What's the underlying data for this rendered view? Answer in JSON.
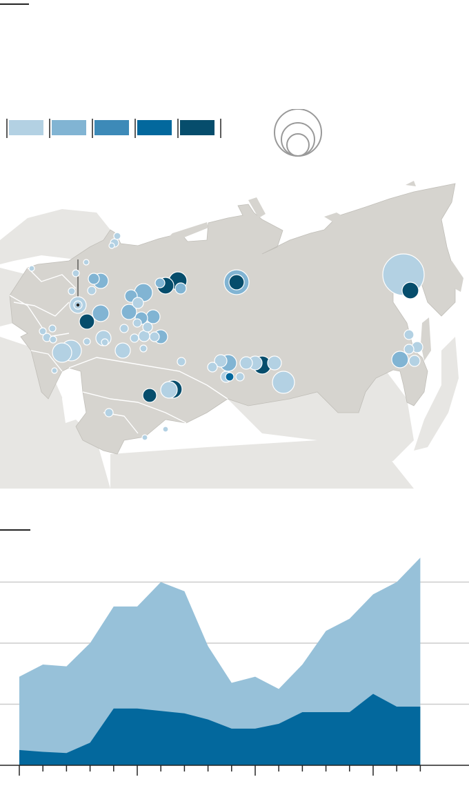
{
  "colors": {
    "scale": [
      "#b3d1e3",
      "#81b4d3",
      "#3d8ab8",
      "#03689d",
      "#064d6c"
    ],
    "land_ussr": "#d6d4cf",
    "land_other": "#e7e6e3",
    "border": "#ffffff",
    "area_total": "#97c1d9",
    "area_part": "#03689d",
    "gridline": "#cccccc",
    "axis": "#222222"
  },
  "legend": {
    "color_bins": 5,
    "size_rings": 3
  },
  "map": {
    "annotated_marker": "callout-line"
  },
  "chart_data": {
    "type": "area",
    "x": [
      0,
      1,
      2,
      3,
      4,
      5,
      6,
      7,
      8,
      9,
      10,
      11,
      12,
      13,
      14,
      15,
      16,
      17
    ],
    "series": [
      {
        "values": [
          1.45,
          1.65,
          1.62,
          2.0,
          2.6,
          2.6,
          3.0,
          2.85,
          1.95,
          1.35,
          1.45,
          1.25,
          1.65,
          2.2,
          2.4,
          2.8,
          3.0,
          3.4
        ]
      },
      {
        "values": [
          0.25,
          0.22,
          0.2,
          0.37,
          0.93,
          0.93,
          0.89,
          0.85,
          0.75,
          0.6,
          0.6,
          0.68,
          0.87,
          0.87,
          0.87,
          1.17,
          0.96,
          0.96
        ]
      }
    ],
    "ylim": [
      0,
      3.5
    ],
    "grid_y": [
      1,
      2,
      3
    ],
    "grid": true,
    "legend": "none",
    "x_ticks_minor": 18,
    "x_ticks_major": [
      5,
      10,
      15
    ]
  }
}
